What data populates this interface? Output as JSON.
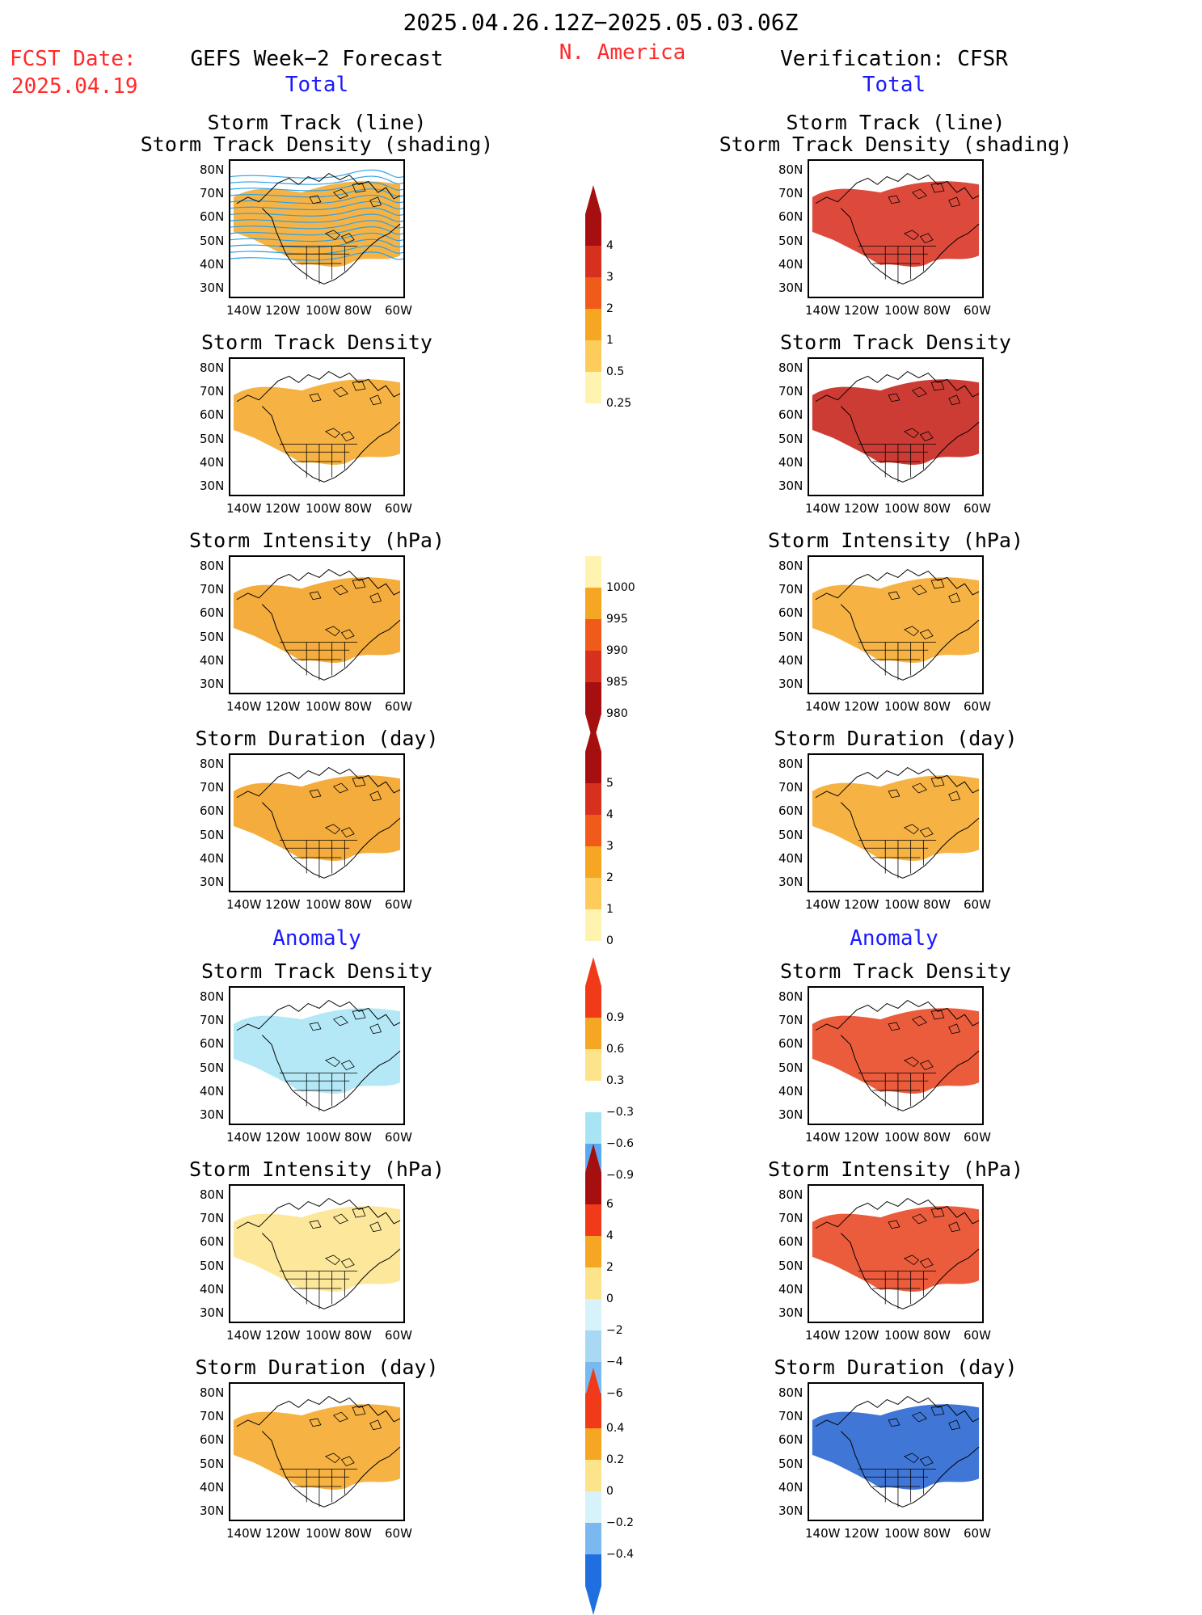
{
  "header": {
    "date_range": "2025.04.26.12Z−2025.05.03.06Z",
    "fcst_label": "FCST Date:",
    "fcst_date": "2025.04.19",
    "left_title": "GEFS Week−2 Forecast",
    "region": "N. America",
    "right_title": "Verification: CFSR",
    "total_left": "Total",
    "total_right": "Total",
    "anomaly_left": "Anomaly",
    "anomaly_right": "Anomaly"
  },
  "axes": {
    "lat_labels": [
      "80N",
      "70N",
      "60N",
      "50N",
      "40N",
      "30N"
    ],
    "lon_labels": [
      "140W",
      "120W",
      "100W",
      "80W",
      "60W"
    ]
  },
  "panels": {
    "left": [
      {
        "title1": "Storm Track (line)",
        "title2": "Storm Track Density (shading)",
        "field": "density",
        "fill": "#f5a623",
        "lines": true
      },
      {
        "title1": "Storm Track Density",
        "field": "density",
        "fill": "#f5a623"
      },
      {
        "title1": "Storm Intensity (hPa)",
        "field": "intensity",
        "fill": "#f29d1a"
      },
      {
        "title1": "Storm Duration (day)",
        "field": "duration",
        "fill": "#f29d1a"
      },
      {
        "title1": "Storm Track Density",
        "field": "density_anom",
        "fill": "#a8e4f4"
      },
      {
        "title1": "Storm Intensity (hPa)",
        "field": "intensity_anom",
        "fill": "#fde38a"
      },
      {
        "title1": "Storm Duration (day)",
        "field": "duration_anom",
        "fill": "#f5a623"
      }
    ],
    "right": [
      {
        "title1": "Storm Track (line)",
        "title2": "Storm Track Density (shading)",
        "field": "density",
        "fill": "#d72a1a"
      },
      {
        "title1": "Storm Track Density",
        "field": "density",
        "fill": "#c41a10"
      },
      {
        "title1": "Storm Intensity (hPa)",
        "field": "intensity",
        "fill": "#f5a623"
      },
      {
        "title1": "Storm Duration (day)",
        "field": "duration",
        "fill": "#f5a623"
      },
      {
        "title1": "Storm Track Density",
        "field": "density_anom",
        "fill": "#e8401a"
      },
      {
        "title1": "Storm Intensity (hPa)",
        "field": "intensity_anom",
        "fill": "#e8401a"
      },
      {
        "title1": "Storm Duration (day)",
        "field": "duration_anom",
        "fill": "#1f5fd0"
      }
    ]
  },
  "colorbars": [
    {
      "name": "density",
      "ticks": [
        "4",
        "3",
        "2",
        "1",
        "0.5",
        "0.25"
      ],
      "colors": [
        "#a50f0f",
        "#d7301f",
        "#f05a1a",
        "#f5a623",
        "#fdcc5a",
        "#fff3b0"
      ],
      "arrow_top": "#a50f0f"
    },
    {
      "name": "intensity",
      "ticks": [
        "1000",
        "995",
        "990",
        "985",
        "980"
      ],
      "colors": [
        "#fff3b0",
        "#f5a623",
        "#f05a1a",
        "#d7301f",
        "#a50f0f"
      ],
      "arrow_bottom": "#a50f0f"
    },
    {
      "name": "duration",
      "ticks": [
        "5",
        "4",
        "3",
        "2",
        "1",
        "0"
      ],
      "colors": [
        "#a50f0f",
        "#d7301f",
        "#f05a1a",
        "#f5a623",
        "#fdcc5a",
        "#fff3b0"
      ],
      "arrow_top": "#a50f0f"
    },
    {
      "name": "density_anom",
      "ticks": [
        "0.9",
        "0.6",
        "0.3",
        "−0.3",
        "−0.6",
        "−0.9"
      ],
      "colors": [
        "#f03a1a",
        "#f5a623",
        "#fde38a",
        "#ffffff",
        "#a8e4f4",
        "#5aaaf0",
        "#1f6fe0"
      ],
      "arrow_top": "#f03a1a",
      "arrow_bottom": "#1f6fe0"
    },
    {
      "name": "intensity_anom",
      "ticks": [
        "6",
        "4",
        "2",
        "0",
        "−2",
        "−4",
        "−6"
      ],
      "colors": [
        "#a50f0f",
        "#f03a1a",
        "#f5a623",
        "#fde38a",
        "#d6f2fa",
        "#a8d8f4",
        "#7ab8f0",
        "#1f6fe0"
      ],
      "arrow_top": "#a50f0f",
      "arrow_bottom": "#1f6fe0"
    },
    {
      "name": "duration_anom",
      "ticks": [
        "0.4",
        "0.2",
        "0",
        "−0.2",
        "−0.4"
      ],
      "colors": [
        "#f03a1a",
        "#f5a623",
        "#fde38a",
        "#d6f2fa",
        "#7ab8f0",
        "#1f6fe0"
      ],
      "arrow_top": "#f03a1a",
      "arrow_bottom": "#1f6fe0"
    }
  ]
}
